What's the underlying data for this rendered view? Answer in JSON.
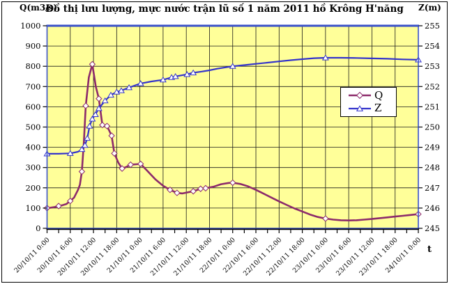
{
  "chart_data": {
    "type": "line",
    "title": "Đồ thị lưu lượng, mực nước trận lũ số 1 năm 2011 hồ Krông H'năng",
    "plot_bg": "#FFFF99",
    "grid_color": "#1a1a1a",
    "border_color": "#3950C8",
    "grid": true,
    "x_axis": {
      "label": "t",
      "range_hours": [
        0,
        96
      ],
      "major_tick_hours": 6,
      "minor_tick_hours": 3,
      "tick_hours": [
        0,
        6,
        12,
        18,
        24,
        30,
        36,
        42,
        48,
        54,
        60,
        66,
        72,
        78,
        84,
        90,
        96
      ],
      "tick_labels": [
        "20/10/11 0:00",
        "20/10/11 6:00",
        "20/10/11 12:00",
        "20/10/11 18:00",
        "21/10/11 0:00",
        "21/10/11 6:00",
        "21/10/11 12:00",
        "21/10/11 18:00",
        "22/10/11 0:00",
        "22/10/11 6:00",
        "22/10/11 12:00",
        "22/10/11 18:00",
        "23/10/11 0:00",
        "23/10/11 6:00",
        "23/10/11 12:00",
        "23/10/11 18:00",
        "24/10/11 0:00"
      ]
    },
    "y_left": {
      "label": "Q(m3/s)",
      "range": [
        0,
        1000
      ],
      "tick_step": 100,
      "ticks": [
        0,
        100,
        200,
        300,
        400,
        500,
        600,
        700,
        800,
        900,
        1000
      ]
    },
    "y_right": {
      "label": "Z(m)",
      "range": [
        245,
        255
      ],
      "tick_step": 1,
      "ticks": [
        245,
        246,
        247,
        248,
        249,
        250,
        251,
        252,
        253,
        254,
        255
      ]
    },
    "legend": {
      "position": "inside-right"
    },
    "points_format": [
      "hours_from_20/10/2011_00:00",
      "value",
      "marker_shown_0_or_1"
    ],
    "series": [
      {
        "name": "Q",
        "axis": "left",
        "color": "#8C2A6B",
        "marker": "diamond",
        "line_width": 2.6,
        "points": [
          [
            0,
            100,
            1
          ],
          [
            1,
            102,
            0
          ],
          [
            2,
            105,
            0
          ],
          [
            3,
            110,
            1
          ],
          [
            4,
            114,
            0
          ],
          [
            5,
            120,
            0
          ],
          [
            6,
            135,
            1
          ],
          [
            7,
            152,
            0
          ],
          [
            8,
            190,
            0
          ],
          [
            8.5,
            215,
            0
          ],
          [
            9,
            280,
            1
          ],
          [
            9.5,
            420,
            0
          ],
          [
            10,
            605,
            1
          ],
          [
            10.8,
            745,
            0
          ],
          [
            11.7,
            810,
            1
          ],
          [
            12.6,
            700,
            0
          ],
          [
            13.4,
            640,
            1
          ],
          [
            14.3,
            510,
            1
          ],
          [
            15.5,
            505,
            1
          ],
          [
            16.7,
            457,
            1
          ],
          [
            17.4,
            370,
            1
          ],
          [
            18.4,
            325,
            0
          ],
          [
            19.4,
            295,
            1
          ],
          [
            20.5,
            303,
            0
          ],
          [
            21.6,
            314,
            1
          ],
          [
            23,
            316,
            0
          ],
          [
            24.2,
            318,
            1
          ],
          [
            26,
            282,
            0
          ],
          [
            28,
            242,
            0
          ],
          [
            30,
            210,
            0
          ],
          [
            31.8,
            190,
            1
          ],
          [
            33.6,
            175,
            1
          ],
          [
            35,
            172,
            0
          ],
          [
            37.8,
            183,
            1
          ],
          [
            39.7,
            195,
            1
          ],
          [
            41,
            198,
            1
          ],
          [
            43,
            205,
            0
          ],
          [
            45,
            218,
            0
          ],
          [
            47,
            224,
            0
          ],
          [
            48,
            225,
            1
          ],
          [
            50,
            219,
            0
          ],
          [
            52,
            207,
            0
          ],
          [
            54,
            190,
            0
          ],
          [
            56,
            171,
            0
          ],
          [
            58,
            152,
            0
          ],
          [
            60,
            133,
            0
          ],
          [
            62,
            115,
            0
          ],
          [
            64,
            98,
            0
          ],
          [
            66,
            83,
            0
          ],
          [
            68,
            68,
            0
          ],
          [
            70,
            56,
            0
          ],
          [
            72,
            48,
            1
          ],
          [
            74,
            43,
            0
          ],
          [
            76,
            40,
            0
          ],
          [
            78,
            39,
            0
          ],
          [
            80,
            40,
            0
          ],
          [
            82,
            43,
            0
          ],
          [
            84,
            46,
            0
          ],
          [
            86,
            50,
            0
          ],
          [
            88,
            54,
            0
          ],
          [
            90,
            58,
            0
          ],
          [
            92,
            62,
            0
          ],
          [
            94,
            66,
            0
          ],
          [
            96,
            70,
            1
          ]
        ]
      },
      {
        "name": "Z",
        "axis": "right",
        "color": "#3333CC",
        "marker": "triangle",
        "line_width": 2.2,
        "points": [
          [
            0,
            248.68,
            1
          ],
          [
            3,
            248.68,
            0
          ],
          [
            6,
            248.7,
            1
          ],
          [
            8,
            248.78,
            0
          ],
          [
            9,
            248.9,
            1
          ],
          [
            9.8,
            249.1,
            1
          ],
          [
            10.4,
            249.45,
            1
          ],
          [
            11,
            250.05,
            1
          ],
          [
            11.7,
            250.4,
            1
          ],
          [
            12.5,
            250.62,
            1
          ],
          [
            13.4,
            250.92,
            1
          ],
          [
            15,
            251.3,
            1
          ],
          [
            16.5,
            251.58,
            1
          ],
          [
            18,
            251.73,
            1
          ],
          [
            19.2,
            251.8,
            1
          ],
          [
            21.2,
            251.95,
            1
          ],
          [
            24.2,
            252.15,
            1
          ],
          [
            27,
            252.25,
            0
          ],
          [
            30,
            252.33,
            1
          ],
          [
            32.2,
            252.45,
            1
          ],
          [
            33.2,
            252.5,
            1
          ],
          [
            36.2,
            252.6,
            1
          ],
          [
            37.8,
            252.68,
            1
          ],
          [
            40,
            252.74,
            0
          ],
          [
            42,
            252.8,
            0
          ],
          [
            44,
            252.88,
            0
          ],
          [
            46,
            252.94,
            0
          ],
          [
            48,
            253.0,
            1
          ],
          [
            51,
            253.06,
            0
          ],
          [
            54,
            253.12,
            0
          ],
          [
            57,
            253.18,
            0
          ],
          [
            60,
            253.24,
            0
          ],
          [
            63,
            253.3,
            0
          ],
          [
            66,
            253.35,
            0
          ],
          [
            69,
            253.4,
            0
          ],
          [
            72,
            253.42,
            1
          ],
          [
            76,
            253.42,
            0
          ],
          [
            80,
            253.41,
            0
          ],
          [
            84,
            253.39,
            0
          ],
          [
            88,
            253.37,
            0
          ],
          [
            92,
            253.34,
            0
          ],
          [
            96,
            253.32,
            1
          ]
        ]
      }
    ]
  }
}
